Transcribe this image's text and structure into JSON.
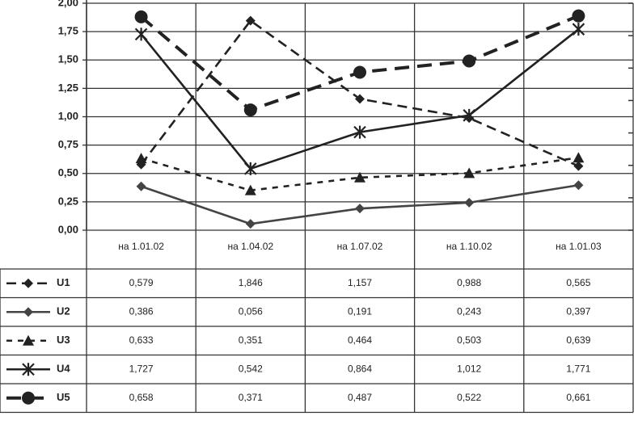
{
  "chart_data": {
    "type": "line",
    "categories": [
      "на 1.01.02",
      "на 1.04.02",
      "на 1.07.02",
      "на 1.10.02",
      "на 1.01.03"
    ],
    "series": [
      {
        "name": "U1",
        "color": "#222222",
        "marker": "diamond",
        "dash": "dashed",
        "values": [
          0.579,
          1.846,
          1.157,
          0.988,
          0.565
        ],
        "value_labels": [
          "0,579",
          "1,846",
          "1,157",
          "0,988",
          "0,565"
        ]
      },
      {
        "name": "U2",
        "color": "#444444",
        "marker": "diamond",
        "dash": "solid",
        "values": [
          0.386,
          0.056,
          0.191,
          0.243,
          0.397
        ],
        "value_labels": [
          "0,386",
          "0,056",
          "0,191",
          "0,243",
          "0,397"
        ]
      },
      {
        "name": "U3",
        "color": "#222222",
        "marker": "triangle",
        "dash": "dotted",
        "values": [
          0.633,
          0.351,
          0.464,
          0.503,
          0.639
        ],
        "value_labels": [
          "0,633",
          "0,351",
          "0,464",
          "0,503",
          "0,639"
        ]
      },
      {
        "name": "U4",
        "color": "#222222",
        "marker": "star",
        "dash": "solid",
        "values": [
          1.727,
          0.542,
          0.864,
          1.012,
          1.771
        ],
        "value_labels": [
          "1,727",
          "0,542",
          "0,864",
          "1,012",
          "1,771"
        ]
      },
      {
        "name": "U5",
        "color": "#222222",
        "marker": "circle",
        "dash": "longdash",
        "axis": "y2",
        "values": [
          0.658,
          0.371,
          0.487,
          0.522,
          0.661
        ],
        "value_labels": [
          "0,658",
          "0,371",
          "0,487",
          "0,522",
          "0,661"
        ]
      }
    ],
    "ylim": [
      0,
      2
    ],
    "yticks": [
      {
        "value": 0,
        "label": "0,00"
      },
      {
        "value": 0.25,
        "label": "0,25"
      },
      {
        "value": 0.5,
        "label": "0,50"
      },
      {
        "value": 0.75,
        "label": "0,75"
      },
      {
        "value": 1,
        "label": "1,00"
      },
      {
        "value": 1.25,
        "label": "1,25"
      },
      {
        "value": 1.5,
        "label": "1,50"
      },
      {
        "value": 1.75,
        "label": "1,75"
      },
      {
        "value": 2,
        "label": "2,00"
      }
    ],
    "y2lim": [
      0,
      0.7
    ],
    "y2ticks": [
      0,
      0.1,
      0.2,
      0.3,
      0.4,
      0.5,
      0.6,
      0.7
    ],
    "grid": true
  }
}
